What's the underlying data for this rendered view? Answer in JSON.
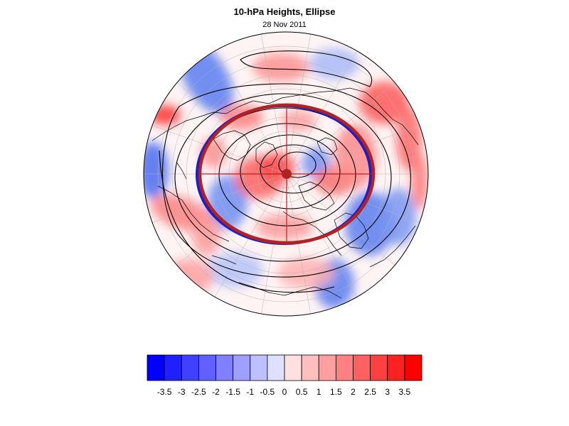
{
  "title": "10-hPa Heights, Ellipse",
  "date": "28 Nov 2011",
  "map": {
    "projection": "orthographic-northern-hemisphere",
    "ellipse_color": "#b22222",
    "ellipse_shadow_color": "#1e1ec8",
    "contour_color": "#000000",
    "coastline_color": "#000000",
    "grid_color": "#b4b4b4",
    "center_marker_color": "#b22222"
  },
  "colorbar": {
    "tick_labels": [
      "-3.5",
      "-3",
      "-2.5",
      "-2",
      "-1.5",
      "-1",
      "-0.5",
      "0",
      "0.5",
      "1",
      "1.5",
      "2",
      "2.5",
      "3",
      "3.5"
    ],
    "min_color": "#0000ff",
    "mid_color": "#ffffff",
    "max_color": "#ff0000"
  }
}
